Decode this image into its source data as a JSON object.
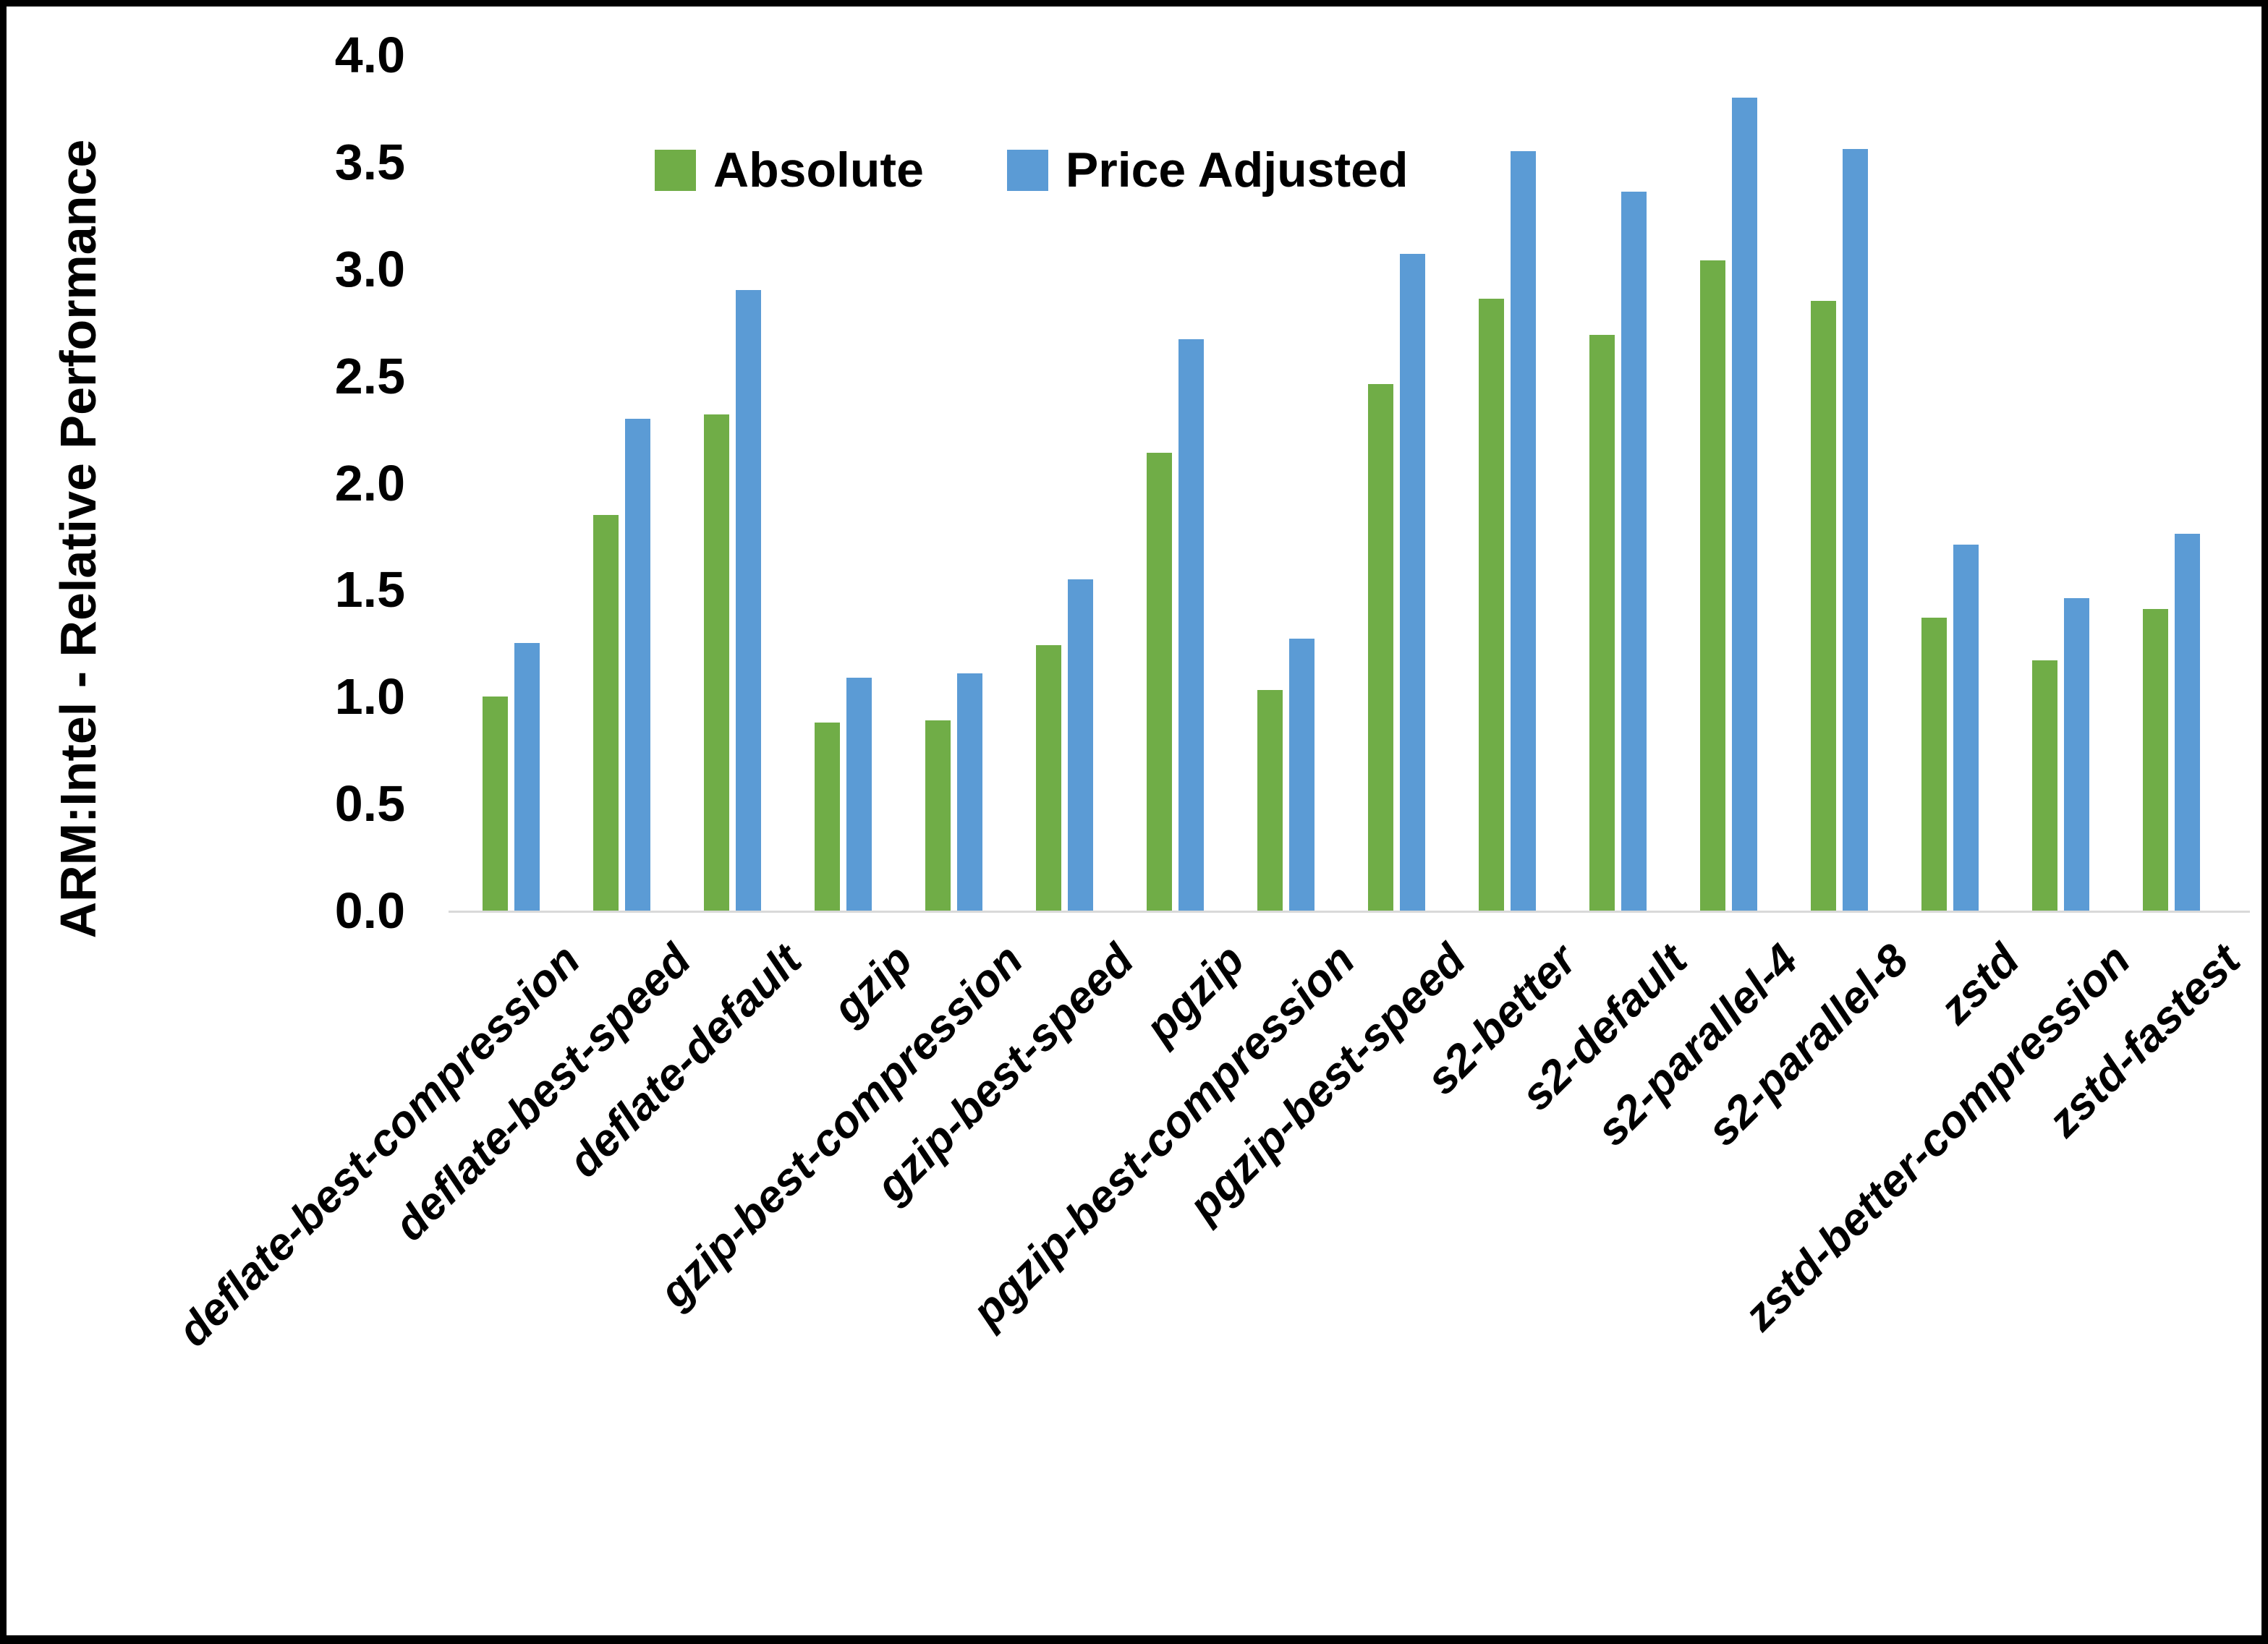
{
  "chart_data": {
    "type": "bar",
    "title": "",
    "xlabel": "",
    "ylabel": "ARM:Intel - Relative Performance",
    "ylim": [
      0.0,
      4.0
    ],
    "ytick_step": 0.5,
    "grid": false,
    "legend_position": "top-center",
    "categories": [
      "deflate-best-compression",
      "deflate-best-speed",
      "deflate-default",
      "gzip",
      "gzip-best-compression",
      "gzip-best-speed",
      "pgzip",
      "pgzip-best-compression",
      "pgzip-best-speed",
      "s2-better",
      "s2-default",
      "s2-parallel-4",
      "s2-parallel-8",
      "zstd",
      "zstd-better-compression",
      "zstd-fastest"
    ],
    "series": [
      {
        "name": "Absolute",
        "color": "#70AD47",
        "values": [
          1.0,
          1.85,
          2.32,
          0.88,
          0.89,
          1.24,
          2.14,
          1.03,
          2.46,
          2.86,
          2.69,
          3.04,
          2.85,
          1.37,
          1.17,
          1.41
        ]
      },
      {
        "name": "Price Adjusted",
        "color": "#5B9BD5",
        "values": [
          1.25,
          2.3,
          2.9,
          1.09,
          1.11,
          1.55,
          2.67,
          1.27,
          3.07,
          3.55,
          3.36,
          3.8,
          3.56,
          1.71,
          1.46,
          1.76
        ]
      }
    ]
  },
  "colors": {
    "axis_line": "#d9d9d9",
    "border": "#000000",
    "background": "#ffffff"
  }
}
